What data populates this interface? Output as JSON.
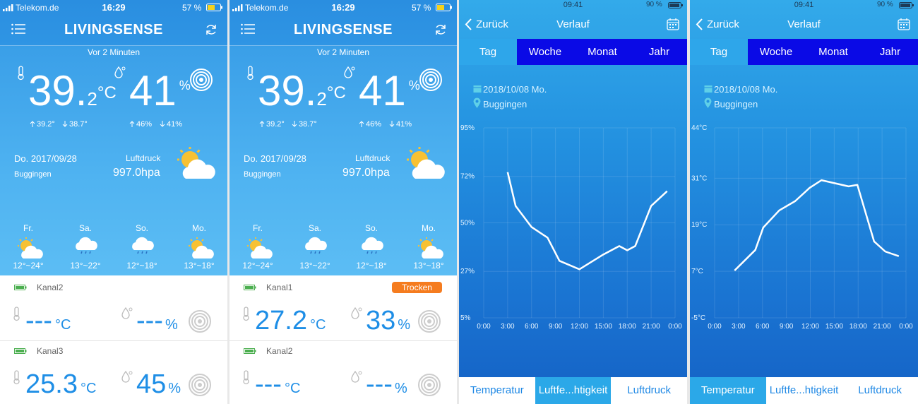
{
  "screens": [
    {
      "status": {
        "carrier": "Telekom.de",
        "time": "16:29",
        "battery": "57 %"
      },
      "header": {
        "title": "LIVINGSENSE"
      },
      "updated": "Vor 2 Minuten",
      "temperature": {
        "main": "39.",
        "decimal": "2",
        "unit": "°C",
        "max": "39.2°",
        "min": "38.7°"
      },
      "humidity": {
        "main": "41",
        "unit": "%",
        "max": "46%",
        "min": "41%"
      },
      "date": "Do. 2017/09/28",
      "location": "Buggingen",
      "pressure_label": "Luftdruck",
      "pressure": "997.0hpa",
      "forecast": [
        {
          "day": "Fr.",
          "range": "12°~24°",
          "icon": "sun-cloud"
        },
        {
          "day": "Sa.",
          "range": "13°~22°",
          "icon": "rain"
        },
        {
          "day": "So.",
          "range": "12°~18°",
          "icon": "rain"
        },
        {
          "day": "Mo.",
          "range": "13°~18°",
          "icon": "sun-cloud"
        }
      ],
      "channels": [
        {
          "name": "Kanal2",
          "temperature": "---",
          "temp_unit": "°C",
          "humidity": "---",
          "hum_unit": "%"
        },
        {
          "name": "Kanal3",
          "temperature": "25.3",
          "temp_unit": "°C",
          "humidity": "45",
          "hum_unit": "%"
        }
      ]
    },
    {
      "status": {
        "carrier": "Telekom.de",
        "time": "16:29",
        "battery": "57 %"
      },
      "header": {
        "title": "LIVINGSENSE"
      },
      "updated": "Vor 2 Minuten",
      "temperature": {
        "main": "39.",
        "decimal": "2",
        "unit": "°C",
        "max": "39.2°",
        "min": "38.7°"
      },
      "humidity": {
        "main": "41",
        "unit": "%",
        "max": "46%",
        "min": "41%"
      },
      "date": "Do. 2017/09/28",
      "location": "Buggingen",
      "pressure_label": "Luftdruck",
      "pressure": "997.0hpa",
      "forecast": [
        {
          "day": "Fr.",
          "range": "12°~24°",
          "icon": "sun-cloud"
        },
        {
          "day": "Sa.",
          "range": "13°~22°",
          "icon": "rain"
        },
        {
          "day": "So.",
          "range": "12°~18°",
          "icon": "rain"
        },
        {
          "day": "Mo.",
          "range": "13°~18°",
          "icon": "sun-cloud"
        }
      ],
      "channels": [
        {
          "name": "Kanal1",
          "badge": "Trocken",
          "temperature": "27.2",
          "temp_unit": "°C",
          "humidity": "33",
          "hum_unit": "%"
        },
        {
          "name": "Kanal2",
          "temperature": "---",
          "temp_unit": "°C",
          "humidity": "---",
          "hum_unit": "%"
        }
      ]
    },
    {
      "status": {
        "time": "09:41",
        "battery": "90 %"
      },
      "nav": {
        "back": "Zurück",
        "title": "Verlauf"
      },
      "tabs": [
        "Tag",
        "Woche",
        "Monat",
        "Jahr"
      ],
      "active_tab": 0,
      "date": "2018/10/08 Mo.",
      "location": "Buggingen",
      "chart": {
        "type": "line",
        "color": "#ffffff",
        "grid": true,
        "x": [
          3,
          4,
          6,
          8,
          9.5,
          12,
          15,
          17,
          18,
          19,
          21,
          23
        ],
        "values": [
          74,
          58,
          48,
          43,
          32,
          28,
          35,
          39,
          37,
          39,
          58,
          65
        ],
        "xlim": [
          0,
          24
        ],
        "xticks": [
          {
            "value": 0,
            "label": "0:00"
          },
          {
            "value": 3,
            "label": "3:00"
          },
          {
            "value": 6,
            "label": "6:00"
          },
          {
            "value": 9,
            "label": "9:00"
          },
          {
            "value": 12,
            "label": "12:00"
          },
          {
            "value": 15,
            "label": "15:00"
          },
          {
            "value": 18,
            "label": "18:00"
          },
          {
            "value": 21,
            "label": "21:00"
          },
          {
            "value": 24,
            "label": "0:00"
          }
        ],
        "ylim": [
          5,
          95
        ],
        "yticks": [
          {
            "value": 95,
            "label": "95%"
          },
          {
            "value": 72,
            "label": "72%"
          },
          {
            "value": 50,
            "label": "50%"
          },
          {
            "value": 27,
            "label": "27%"
          },
          {
            "value": 5,
            "label": "5%"
          }
        ]
      },
      "bottom_tabs": [
        "Temperatur",
        "Luftfe...htigkeit",
        "Luftdruck"
      ],
      "active_bottom": 1
    },
    {
      "status": {
        "time": "09:41",
        "battery": "90 %"
      },
      "nav": {
        "back": "Zurück",
        "title": "Verlauf"
      },
      "tabs": [
        "Tag",
        "Woche",
        "Monat",
        "Jahr"
      ],
      "active_tab": 0,
      "date": "2018/10/08 Mo.",
      "location": "Buggingen",
      "chart": {
        "type": "line",
        "color": "#ffffff",
        "grid": true,
        "x": [
          2.5,
          5.1,
          6.1,
          8.1,
          10.1,
          11.9,
          13.4,
          16.8,
          17.9,
          20,
          21.4,
          23.1
        ],
        "values": [
          7.2,
          12.5,
          18.3,
          22.7,
          25.1,
          28.5,
          30.5,
          28.9,
          29.3,
          14.7,
          12.1,
          10.9
        ],
        "xlim": [
          0,
          24
        ],
        "xticks": [
          {
            "value": 0,
            "label": "0:00"
          },
          {
            "value": 3,
            "label": "3:00"
          },
          {
            "value": 6,
            "label": "6:00"
          },
          {
            "value": 9,
            "label": "9:00"
          },
          {
            "value": 12,
            "label": "12:00"
          },
          {
            "value": 15,
            "label": "15:00"
          },
          {
            "value": 18,
            "label": "18:00"
          },
          {
            "value": 21,
            "label": "21:00"
          },
          {
            "value": 24,
            "label": "0:00"
          }
        ],
        "ylim": [
          -5,
          44
        ],
        "yticks": [
          {
            "value": 44,
            "label": "44°C"
          },
          {
            "value": 31,
            "label": "31°C"
          },
          {
            "value": 19,
            "label": "19°C"
          },
          {
            "value": 7,
            "label": "7°C"
          },
          {
            "value": -5,
            "label": "-5°C"
          }
        ]
      },
      "bottom_tabs": [
        "Temperatur",
        "Luftfe...htigkeit",
        "Luftdruck"
      ],
      "active_bottom": 0
    }
  ]
}
